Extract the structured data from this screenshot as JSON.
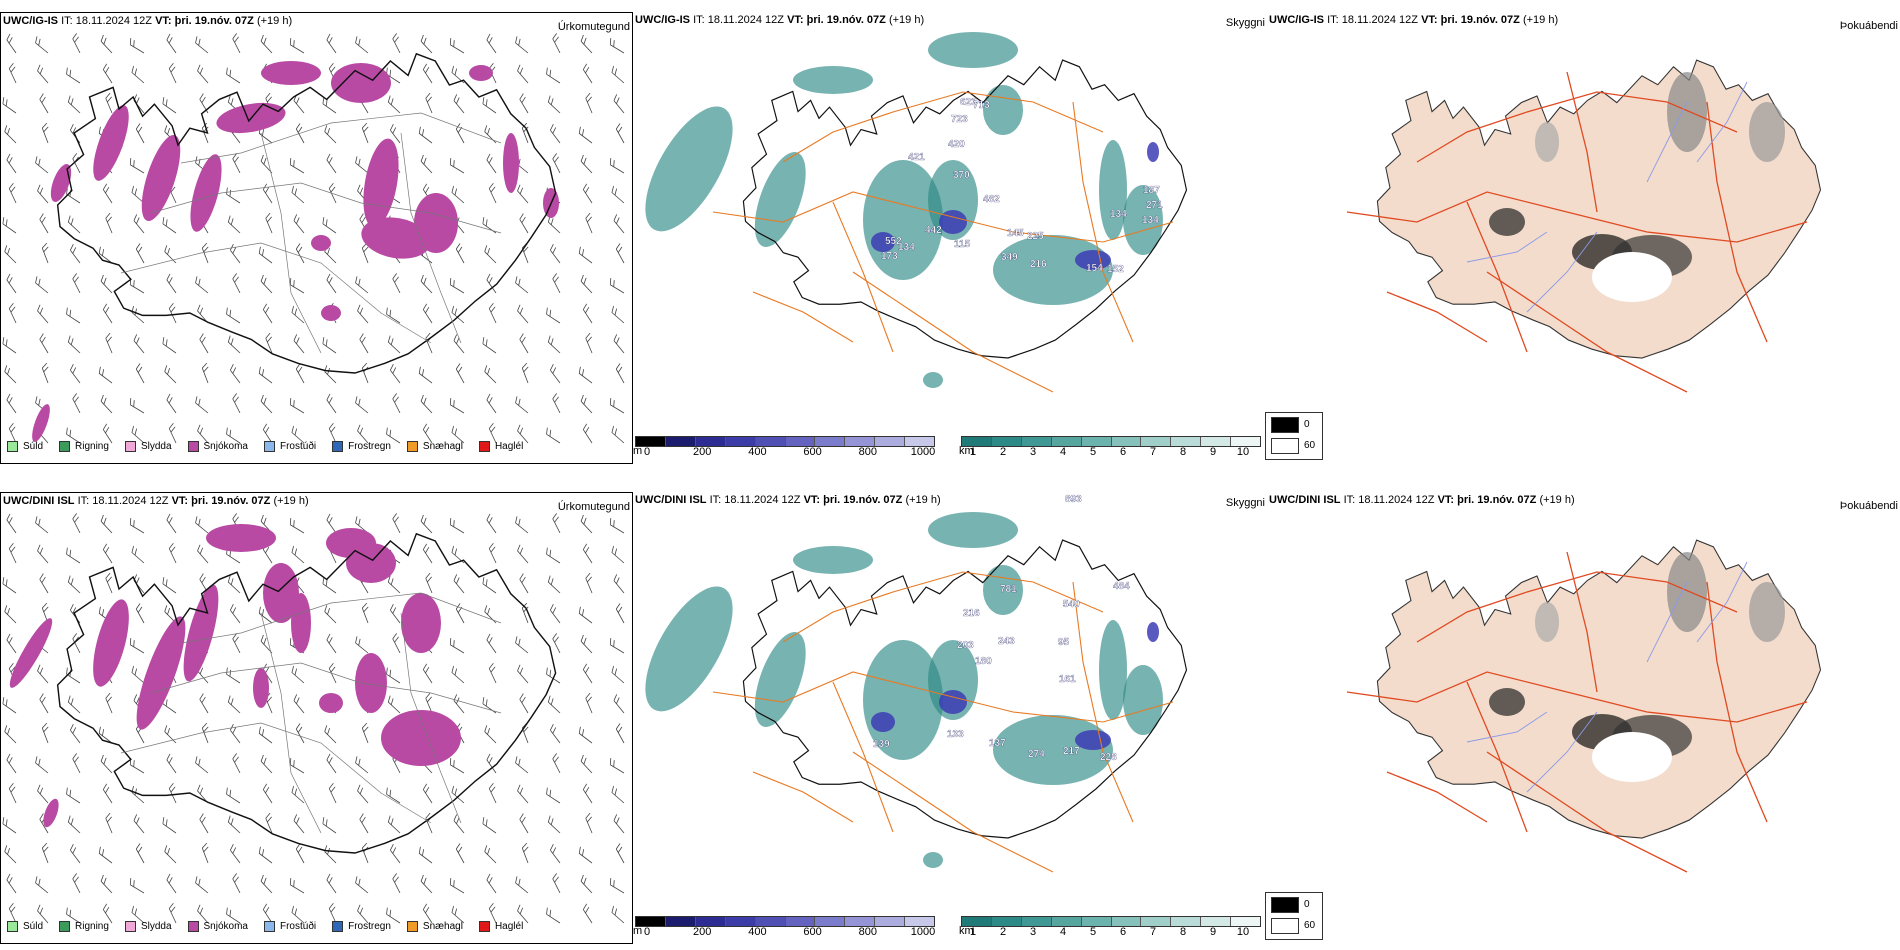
{
  "rows": [
    {
      "model": "UWC/IG-IS",
      "it_label": "IT:",
      "it_value": "18.11.2024 12Z",
      "vt_label": "VT:",
      "vt_value": "þri. 19.nóv. 07Z",
      "lead": "(+19 h)"
    },
    {
      "model": "UWC/DINI ISL",
      "it_label": "IT:",
      "it_value": "18.11.2024 12Z",
      "vt_label": "VT:",
      "vt_value": "þri. 19.nóv. 07Z",
      "lead": "(+19 h)"
    }
  ],
  "panel_titles": {
    "precip": "Úrkomutegund",
    "visibility": "Skyggni",
    "fog": "Þokuábendi"
  },
  "precip_legend": [
    {
      "label": "Súld",
      "color": "#9be89b"
    },
    {
      "label": "Rigning",
      "color": "#3c9a5a"
    },
    {
      "label": "Slydda",
      "color": "#f0a8d8"
    },
    {
      "label": "Snjókoma",
      "color": "#b84aa4"
    },
    {
      "label": "Frostúði",
      "color": "#8cb8ec"
    },
    {
      "label": "Frostregn",
      "color": "#3068b8"
    },
    {
      "label": "Snæhagl",
      "color": "#f09a28"
    },
    {
      "label": "Haglél",
      "color": "#e01818"
    }
  ],
  "visibility_m_bar": {
    "unit": "m",
    "ticks": [
      "0",
      "200",
      "400",
      "600",
      "800",
      "1000"
    ],
    "colors": [
      "#000000",
      "#1c1c6e",
      "#2c2c92",
      "#3c3ca8",
      "#5050b4",
      "#6464c0",
      "#7c7ccc",
      "#9494d6",
      "#acacdf",
      "#c8c8ea"
    ]
  },
  "visibility_km_bar": {
    "unit": "km",
    "ticks": [
      "1",
      "2",
      "3",
      "4",
      "5",
      "6",
      "7",
      "8",
      "9",
      "10"
    ],
    "colors": [
      "#1f7a78",
      "#2e8a86",
      "#3f9893",
      "#56a59f",
      "#6db3ad",
      "#86c1bb",
      "#a0cec9",
      "#badcd8",
      "#d4e9e6",
      "#edf6f5"
    ]
  },
  "fog_legend": {
    "high_label": "0",
    "low_label": "60"
  },
  "map_labels": {
    "top": [
      "623",
      "713",
      "723",
      "420",
      "421",
      "370",
      "482",
      "552",
      "442",
      "173",
      "134",
      "115",
      "145",
      "225",
      "349",
      "216",
      "154",
      "152",
      "134",
      "187",
      "271",
      "134"
    ],
    "bottom": [
      "893",
      "781",
      "540",
      "484",
      "216",
      "243",
      "203",
      "180",
      "95",
      "161",
      "139",
      "133",
      "137",
      "274",
      "217",
      "228"
    ]
  },
  "colors": {
    "snow": "#b84aa4",
    "teal": "#2e8a86",
    "blue": "#3c3cb4",
    "road": "#e87a24",
    "fogland": "#f3dccc",
    "fogroad": "#e04a22"
  }
}
